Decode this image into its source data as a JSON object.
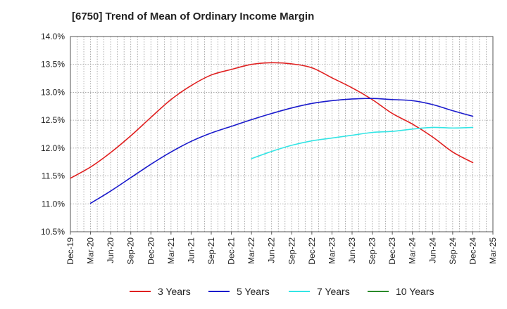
{
  "chart_data": {
    "type": "line",
    "title": "[6750]  Trend of Mean of Ordinary Income Margin",
    "xlabel": "",
    "ylabel": "",
    "ylim": [
      10.5,
      14.0
    ],
    "yticks": [
      "10.5%",
      "11.0%",
      "11.5%",
      "12.0%",
      "12.5%",
      "13.0%",
      "13.5%",
      "14.0%"
    ],
    "yticks_values": [
      10.5,
      11.0,
      11.5,
      12.0,
      12.5,
      13.0,
      13.5,
      14.0
    ],
    "categories": [
      "Dec-19",
      "Mar-20",
      "Jun-20",
      "Sep-20",
      "Dec-20",
      "Mar-21",
      "Jun-21",
      "Sep-21",
      "Dec-21",
      "Mar-22",
      "Jun-22",
      "Sep-22",
      "Dec-22",
      "Mar-23",
      "Jun-23",
      "Sep-23",
      "Dec-23",
      "Mar-24",
      "Jun-24",
      "Sep-24",
      "Dec-24",
      "Mar-25"
    ],
    "grid": true,
    "legend_position": "bottom",
    "series": [
      {
        "name": "3 Years",
        "color": "#e02020",
        "values": [
          11.46,
          11.66,
          11.92,
          12.22,
          12.55,
          12.87,
          13.12,
          13.31,
          13.41,
          13.5,
          13.53,
          13.51,
          13.44,
          13.26,
          13.08,
          12.87,
          12.62,
          12.43,
          12.2,
          11.93,
          11.74,
          null
        ]
      },
      {
        "name": "5 Years",
        "color": "#1a1acc",
        "values": [
          null,
          11.01,
          11.23,
          11.47,
          11.71,
          11.93,
          12.12,
          12.27,
          12.39,
          12.51,
          12.62,
          12.72,
          12.8,
          12.85,
          12.88,
          12.89,
          12.87,
          12.85,
          12.78,
          12.67,
          12.57,
          null
        ]
      },
      {
        "name": "7 Years",
        "color": "#33e5e5",
        "values": [
          null,
          null,
          null,
          null,
          null,
          null,
          null,
          null,
          null,
          11.81,
          11.94,
          12.05,
          12.13,
          12.18,
          12.23,
          12.28,
          12.3,
          12.34,
          12.37,
          12.36,
          12.37,
          null
        ]
      },
      {
        "name": "10 Years",
        "color": "#2a8a2a",
        "values": [
          null,
          null,
          null,
          null,
          null,
          null,
          null,
          null,
          null,
          null,
          null,
          null,
          null,
          null,
          null,
          null,
          null,
          null,
          null,
          null,
          null,
          null
        ]
      }
    ]
  }
}
